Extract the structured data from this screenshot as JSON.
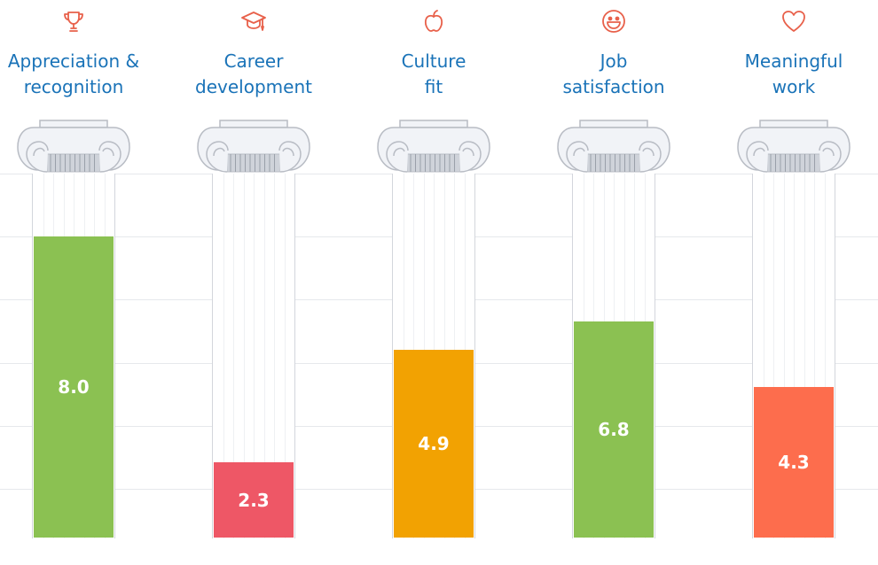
{
  "chart_data": {
    "type": "bar",
    "title": "",
    "xlabel": "",
    "ylabel": "",
    "grid": true,
    "legend": "none",
    "categories": [
      "Appreciation & recognition",
      "Career development",
      "Culture fit",
      "Job satisfaction",
      "Meaningful work"
    ],
    "category_lines": [
      [
        "Appreciation &",
        "recognition"
      ],
      [
        "Career",
        "development"
      ],
      [
        "Culture",
        "fit"
      ],
      [
        "Job",
        "satisfaction"
      ],
      [
        "Meaningful",
        "work"
      ]
    ],
    "values": [
      8.0,
      2.3,
      4.9,
      6.8,
      4.3
    ],
    "value_labels": [
      "8.0",
      "2.3",
      "4.9",
      "6.8",
      "4.3"
    ],
    "fill_fraction": [
      0.83,
      0.207,
      0.518,
      0.596,
      0.414
    ],
    "bar_colors": [
      "#8bc152",
      "#ee5766",
      "#f2a202",
      "#8bc152",
      "#fd6d4d"
    ],
    "icons": [
      "trophy-icon",
      "graduation-cap-icon",
      "apple-icon",
      "smiley-icon",
      "heart-icon"
    ],
    "gridline_count": 6
  },
  "colors": {
    "label": "#1a73b8",
    "icon": "#e8604a",
    "column_outline": "#b8bcc4",
    "column_fill": "#f1f3f7",
    "grid": "#e6e8ec"
  }
}
